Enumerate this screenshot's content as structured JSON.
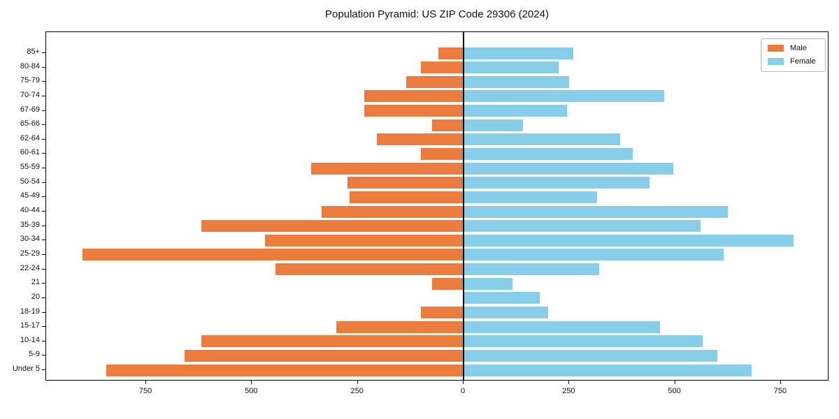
{
  "title": "Population Pyramid: US ZIP Code 29306 (2024)",
  "legend": {
    "male_label": "Male",
    "female_label": "Female"
  },
  "colors": {
    "male": "#EC7C3E",
    "female": "#87CEEB",
    "axis": "#000000",
    "background": "#FFFFFF"
  },
  "x_axis": {
    "tick_labels": [
      "750",
      "500",
      "250",
      "0",
      "250",
      "500",
      "750"
    ],
    "tick_positions": [
      -750,
      -500,
      -250,
      0,
      250,
      500,
      750
    ]
  },
  "chart_data": {
    "type": "bar",
    "subtype": "population-pyramid",
    "orientation": "horizontal",
    "title": "Population Pyramid: US ZIP Code 29306 (2024)",
    "categories": [
      "85+",
      "80-84",
      "75-79",
      "70-74",
      "67-69",
      "65-66",
      "62-64",
      "60-61",
      "55-59",
      "50-54",
      "45-49",
      "40-44",
      "35-39",
      "30-34",
      "25-29",
      "22-24",
      "21",
      "20",
      "18-19",
      "15-17",
      "10-14",
      "5-9",
      "Under 5"
    ],
    "series": [
      {
        "name": "Male",
        "side": "left",
        "color": "#EC7C3E",
        "values": [
          60,
          100,
          135,
          235,
          235,
          75,
          205,
          100,
          360,
          275,
          270,
          335,
          620,
          470,
          900,
          445,
          75,
          0,
          100,
          300,
          620,
          660,
          845
        ]
      },
      {
        "name": "Female",
        "side": "right",
        "color": "#87CEEB",
        "values": [
          260,
          225,
          250,
          475,
          245,
          140,
          370,
          400,
          495,
          440,
          315,
          625,
          560,
          780,
          615,
          320,
          115,
          180,
          200,
          465,
          565,
          600,
          680
        ]
      }
    ],
    "xlim": [
      -985,
      865
    ],
    "x_ticks": [
      750,
      500,
      250,
      0,
      250,
      500,
      750
    ],
    "grid": false,
    "legend_position": "upper right",
    "legend_entries": [
      "Male",
      "Female"
    ]
  }
}
